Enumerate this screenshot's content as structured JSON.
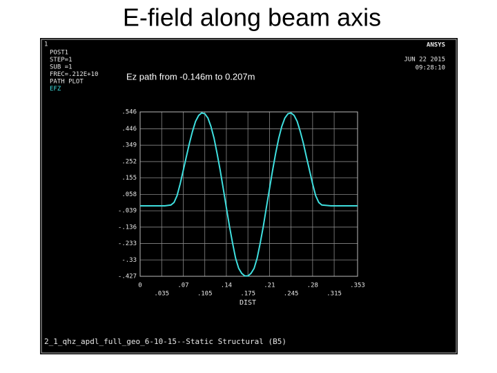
{
  "slide_title": "E-field along beam axis",
  "screen": {
    "window_number": "1",
    "header_lines": [
      "POST1",
      "STEP=1",
      "SUB =1",
      "FREC=.212E+10",
      "PATH PLOT"
    ],
    "logo": "ANSYS",
    "date": "JUN 22 2015",
    "time": "09:28:10",
    "footer": "2_1_qhz_apdl_full_geo_6-10-15--Static Structural (B5)"
  },
  "chart_data": {
    "type": "line",
    "annotation": "Ez path from -0.146m to 0.207m",
    "x_label": "DIST",
    "x": [
      0,
      0.04,
      0.05,
      0.055,
      0.06,
      0.065,
      0.07,
      0.075,
      0.08,
      0.085,
      0.09,
      0.095,
      0.1,
      0.105,
      0.11,
      0.115,
      0.12,
      0.125,
      0.13,
      0.135,
      0.14,
      0.145,
      0.15,
      0.155,
      0.16,
      0.165,
      0.17,
      0.175,
      0.18,
      0.185,
      0.19,
      0.195,
      0.2,
      0.205,
      0.21,
      0.215,
      0.22,
      0.225,
      0.23,
      0.235,
      0.24,
      0.245,
      0.25,
      0.255,
      0.26,
      0.265,
      0.27,
      0.275,
      0.28,
      0.285,
      0.29,
      0.295,
      0.31,
      0.353
    ],
    "series": [
      {
        "name": "EFZ",
        "color": "#3fe0e0",
        "values": [
          -0.01,
          -0.01,
          -0.005,
          0.01,
          0.05,
          0.12,
          0.2,
          0.28,
          0.36,
          0.43,
          0.49,
          0.525,
          0.54,
          0.535,
          0.51,
          0.46,
          0.39,
          0.3,
          0.2,
          0.09,
          -0.02,
          -0.13,
          -0.23,
          -0.32,
          -0.38,
          -0.41,
          -0.425,
          -0.425,
          -0.41,
          -0.38,
          -0.32,
          -0.23,
          -0.13,
          -0.02,
          0.09,
          0.2,
          0.3,
          0.39,
          0.46,
          0.51,
          0.535,
          0.54,
          0.525,
          0.49,
          0.43,
          0.36,
          0.28,
          0.2,
          0.12,
          0.05,
          0.01,
          -0.005,
          -0.01,
          -0.01
        ]
      }
    ],
    "xlim": [
      0,
      0.353
    ],
    "ylim": [
      -0.427,
      0.546
    ],
    "xticks": [
      0,
      {
        "value": 0.035,
        "label": ".035"
      },
      {
        "value": 0.07,
        "label": ".07"
      },
      {
        "value": 0.105,
        "label": ".105"
      },
      {
        "value": 0.14,
        "label": ".14"
      },
      {
        "value": 0.175,
        "label": ".175"
      },
      {
        "value": 0.21,
        "label": ".21"
      },
      {
        "value": 0.245,
        "label": ".245"
      },
      {
        "value": 0.28,
        "label": ".28"
      },
      {
        "value": 0.315,
        "label": ".315"
      },
      {
        "value": 0.353,
        "label": ".353"
      }
    ],
    "yticks": [
      {
        "value": 0.546,
        "label": ".546"
      },
      {
        "value": 0.446,
        "label": ".446"
      },
      {
        "value": 0.349,
        "label": ".349"
      },
      {
        "value": 0.252,
        "label": ".252"
      },
      {
        "value": 0.155,
        "label": ".155"
      },
      {
        "value": 0.058,
        "label": ".058"
      },
      {
        "value": -0.039,
        "label": "-.039"
      },
      {
        "value": -0.136,
        "label": "-.136"
      },
      {
        "value": -0.233,
        "label": "-.233"
      },
      {
        "value": -0.33,
        "label": "-.33"
      },
      {
        "value": -0.427,
        "label": "-.427"
      }
    ],
    "grid": true
  }
}
